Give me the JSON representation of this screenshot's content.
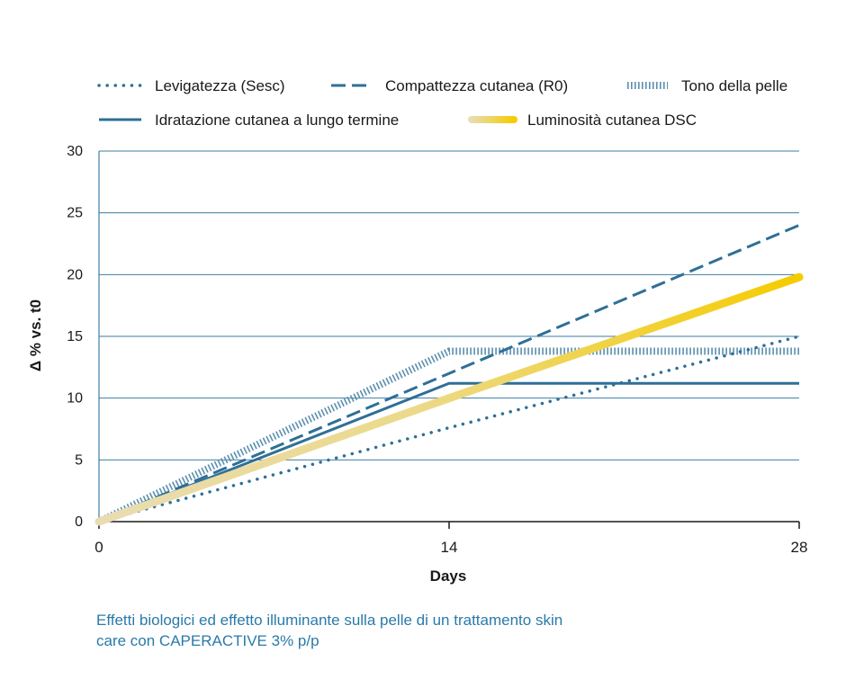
{
  "chart_data": {
    "type": "line",
    "xlabel": "Days",
    "ylabel": "Δ % vs. t0",
    "x": [
      0,
      14,
      28
    ],
    "x_ticks": [
      "0",
      "14",
      "28"
    ],
    "ylim": [
      0,
      30
    ],
    "y_ticks": [
      "0",
      "5",
      "10",
      "15",
      "20",
      "25",
      "30"
    ],
    "grid": "horizontal",
    "legend_position": "top",
    "series": [
      {
        "name": "Levigatezza (Sesc)",
        "values": [
          0,
          7.6,
          15.0
        ],
        "style": "dotted",
        "color": "#2e6f97"
      },
      {
        "name": "Compattezza cutanea (R0)",
        "values": [
          0,
          12.0,
          24.0
        ],
        "style": "dashed",
        "color": "#2e6f97"
      },
      {
        "name": "Tono della pelle",
        "values": [
          0,
          13.8,
          13.8
        ],
        "style": "hatched",
        "color": "#5b8fae"
      },
      {
        "name": "Idratazione cutanea a lungo termine",
        "values": [
          0,
          11.2,
          11.2
        ],
        "style": "solid",
        "color": "#2e6f97"
      },
      {
        "name": "Luminosità cutanea DSC",
        "values": [
          0,
          10.0,
          19.8
        ],
        "style": "gradient",
        "color": "#f5cc00",
        "color_start": "#e9dcb2"
      }
    ]
  },
  "caption": {
    "line1": "Effetti biologici ed effetto illuminante sulla pelle di un trattamento skin",
    "line2": "care con CAPERACTIVE 3% p/p"
  }
}
